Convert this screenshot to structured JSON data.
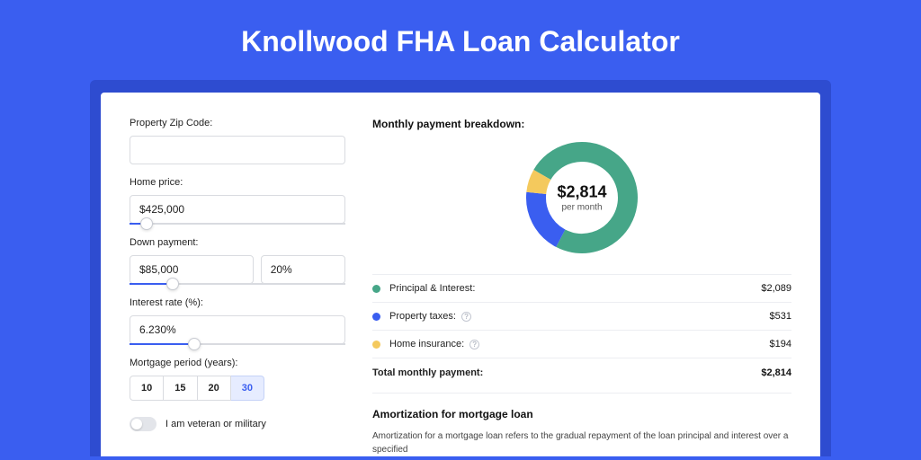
{
  "title": "Knollwood FHA Loan Calculator",
  "colors": {
    "page_bg": "#3a5ef0",
    "card_shadow": "#2e4cd0",
    "accent": "#3a5ef0",
    "border": "#d9dbe0",
    "text": "#222222"
  },
  "form": {
    "zip": {
      "label": "Property Zip Code:",
      "value": ""
    },
    "price": {
      "label": "Home price:",
      "value": "$425,000",
      "slider_pct": 8
    },
    "down": {
      "label": "Down payment:",
      "value": "$85,000",
      "pct": "20%",
      "slider_pct": 20
    },
    "rate": {
      "label": "Interest rate (%):",
      "value": "6.230%",
      "slider_pct": 30
    },
    "period": {
      "label": "Mortgage period (years):",
      "options": [
        "10",
        "15",
        "20",
        "30"
      ],
      "selected": "30"
    },
    "veteran": {
      "label": "I am veteran or military",
      "checked": false
    }
  },
  "breakdown": {
    "title": "Monthly payment breakdown:",
    "center_amount": "$2,814",
    "center_sub": "per month",
    "donut": {
      "slices": [
        {
          "key": "principal",
          "pct": 74.2,
          "color": "#46a688"
        },
        {
          "key": "taxes",
          "pct": 18.9,
          "color": "#3a5ef0"
        },
        {
          "key": "insurance",
          "pct": 6.9,
          "color": "#f4c95d"
        }
      ],
      "thickness": 22,
      "bg": "#ffffff"
    },
    "rows": [
      {
        "dot": "#46a688",
        "label": "Principal & Interest:",
        "info": false,
        "value": "$2,089"
      },
      {
        "dot": "#3a5ef0",
        "label": "Property taxes:",
        "info": true,
        "value": "$531"
      },
      {
        "dot": "#f4c95d",
        "label": "Home insurance:",
        "info": true,
        "value": "$194"
      }
    ],
    "total": {
      "label": "Total monthly payment:",
      "value": "$2,814"
    }
  },
  "amortization": {
    "title": "Amortization for mortgage loan",
    "text": "Amortization for a mortgage loan refers to the gradual repayment of the loan principal and interest over a specified"
  }
}
